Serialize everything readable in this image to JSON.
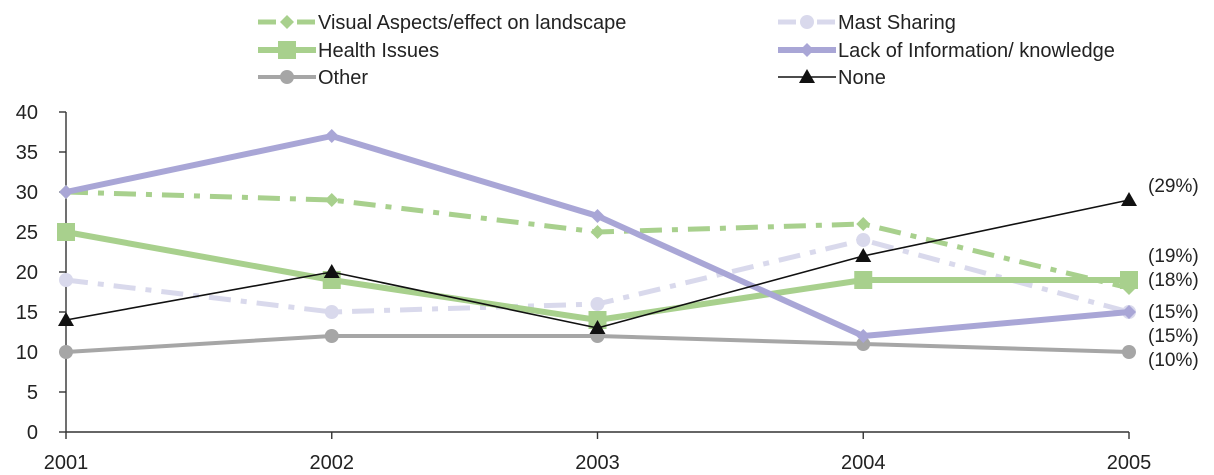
{
  "chart_data": {
    "type": "line",
    "x": [
      "2001",
      "2002",
      "2003",
      "2004",
      "2005"
    ],
    "ylim": [
      0,
      40
    ],
    "yticks": [
      0,
      5,
      10,
      15,
      20,
      25,
      30,
      35,
      40
    ],
    "grid": false,
    "legend_position": "top",
    "series": [
      {
        "name": "Visual Aspects/effect on landscape",
        "values": [
          30,
          29,
          25,
          26,
          18
        ],
        "color": "#a8d08d",
        "style": "dashdot",
        "marker": "diamond"
      },
      {
        "name": "Mast Sharing",
        "values": [
          19,
          15,
          16,
          24,
          15
        ],
        "color": "#d9d9ec",
        "style": "dashdot",
        "marker": "circle"
      },
      {
        "name": "Health Issues",
        "values": [
          25,
          19,
          14,
          19,
          19
        ],
        "color": "#a8d08d",
        "style": "solid-thick",
        "marker": "square"
      },
      {
        "name": "Lack of Information/ knowledge",
        "values": [
          30,
          37,
          27,
          12,
          15
        ],
        "color": "#a9a6d6",
        "style": "solid-thick",
        "marker": "diamond"
      },
      {
        "name": "Other",
        "values": [
          10,
          12,
          12,
          11,
          10
        ],
        "color": "#a6a6a6",
        "style": "solid",
        "marker": "circle"
      },
      {
        "name": "None",
        "values": [
          14,
          20,
          13,
          22,
          29
        ],
        "color": "#111111",
        "style": "solid-thin",
        "marker": "triangle"
      }
    ],
    "end_labels": [
      "(29%)",
      "(19%)",
      "(18%)",
      "(15%)",
      "(15%)",
      "(10%)"
    ]
  }
}
